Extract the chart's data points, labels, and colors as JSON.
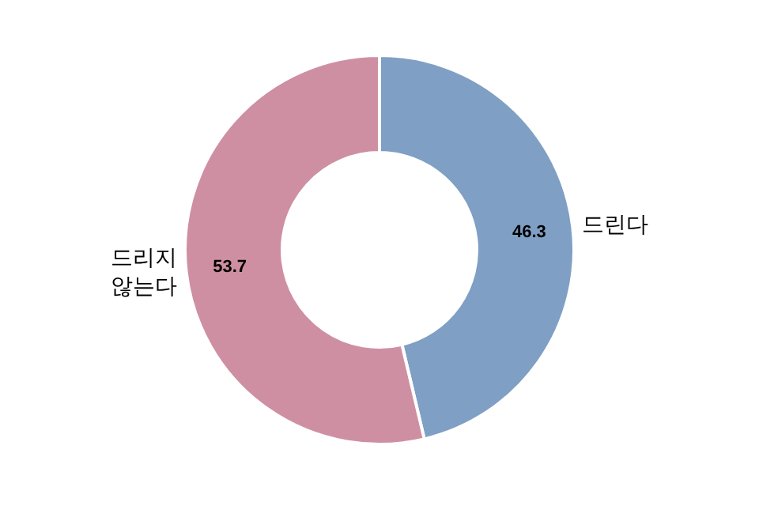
{
  "chart_data": {
    "type": "donut",
    "categories": [
      "드린다",
      "드리지 않는다"
    ],
    "values": [
      46.3,
      53.7
    ],
    "colors": [
      "#7f9fc4",
      "#cf8fa3"
    ],
    "data_labels": true,
    "legend": false
  }
}
